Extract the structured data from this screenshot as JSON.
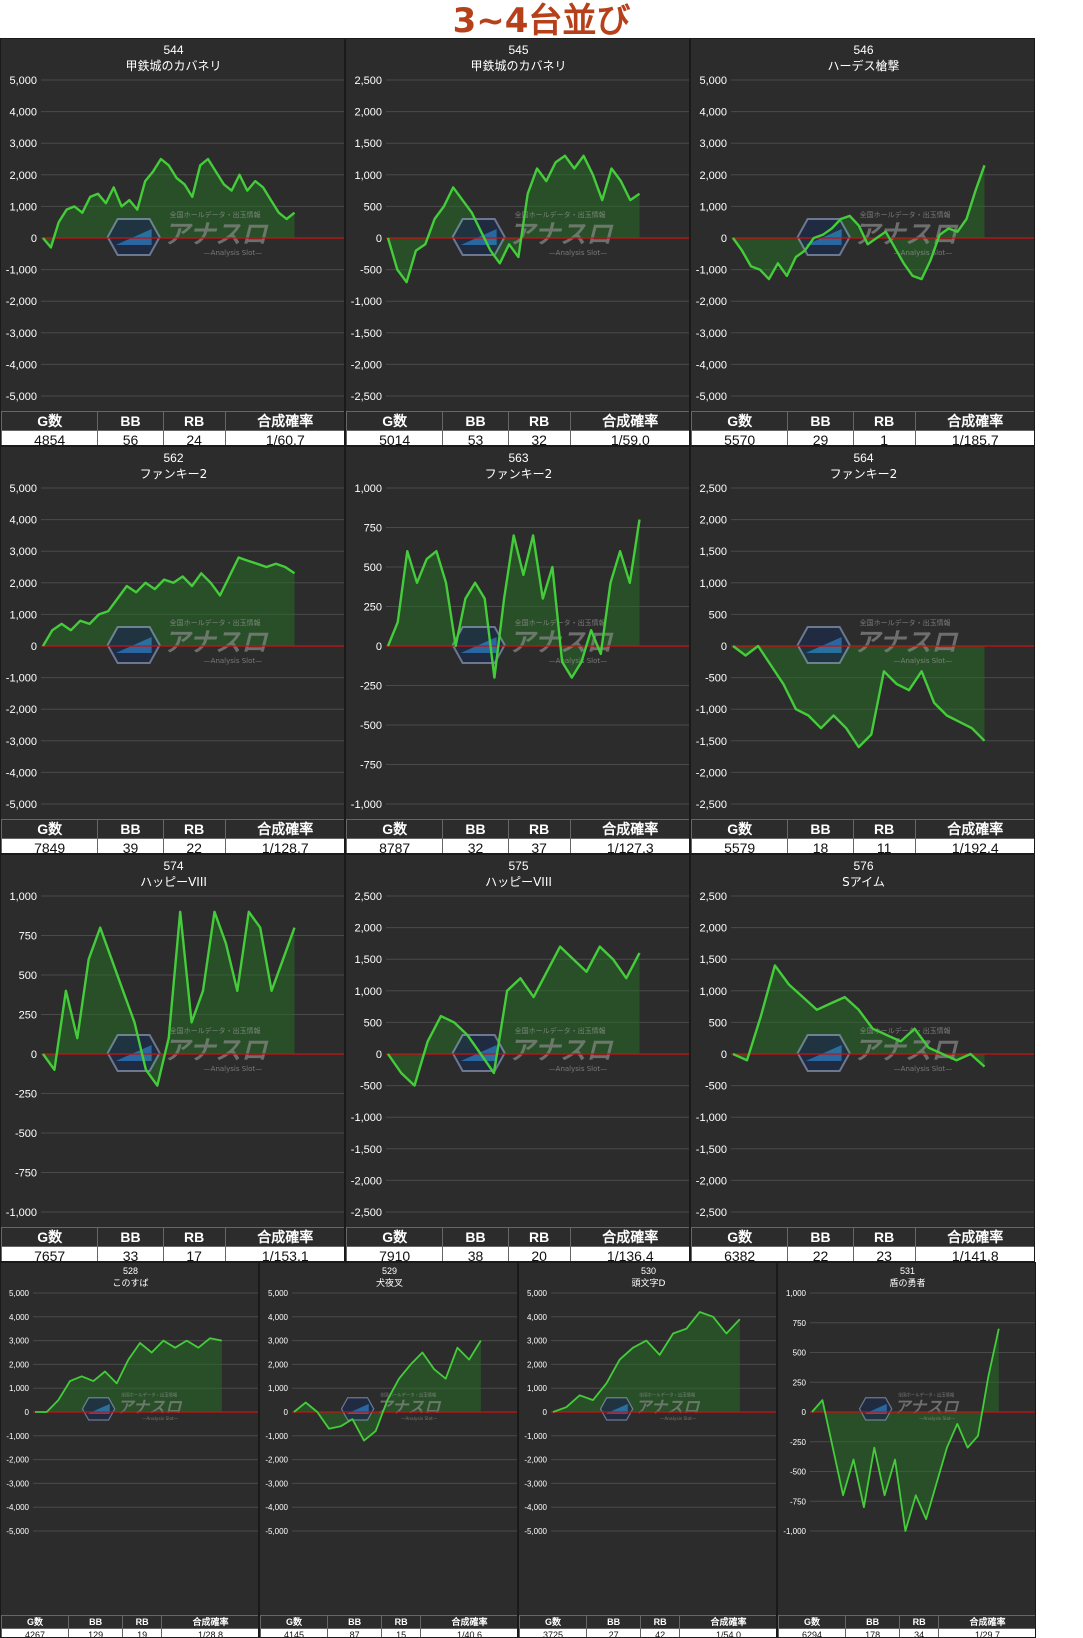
{
  "page_title": "3~4台並び",
  "headers": {
    "games": "G数",
    "bb": "BB",
    "rb": "RB",
    "rate": "合成確率"
  },
  "watermark": {
    "main": "アナスロ",
    "sub": "—Analysis Slot—",
    "top": "全国ホールデータ・出玉情報"
  },
  "colors": {
    "panel_bg": "#2c2c2c",
    "grid": "#4a4a4a",
    "line": "#44cc3a",
    "fill": "rgba(40,110,40,0.55)",
    "zero_line": "#cc1111",
    "title": "#b5401a"
  },
  "chart_data": [
    {
      "type": "area",
      "title": "544",
      "subtitle": "甲鉄城のカバネリ",
      "ylim": [
        -5000,
        5000
      ],
      "yticks": [
        "5,000",
        "4,000",
        "3,000",
        "2,000",
        "1,000",
        "0",
        "-1,000",
        "-2,000",
        "-3,000",
        "-4,000",
        "-5,000"
      ],
      "values": [
        0,
        -300,
        500,
        900,
        1000,
        800,
        1300,
        1400,
        1100,
        1600,
        1000,
        1200,
        900,
        1800,
        2100,
        2500,
        2300,
        1900,
        1700,
        1300,
        2300,
        2500,
        2100,
        1700,
        1500,
        2000,
        1500,
        1800,
        1600,
        1200,
        800,
        600,
        800
      ],
      "stats": {
        "games": "4854",
        "bb": "56",
        "rb": "24",
        "rate": "1/60.7"
      }
    },
    {
      "type": "area",
      "title": "545",
      "subtitle": "甲鉄城のカバネリ",
      "ylim": [
        -2500,
        2500
      ],
      "yticks": [
        "2,500",
        "2,000",
        "1,500",
        "1,000",
        "500",
        "0",
        "-500",
        "-1,000",
        "-1,500",
        "-2,000",
        "-2,500"
      ],
      "values": [
        0,
        -500,
        -700,
        -200,
        -100,
        300,
        500,
        800,
        600,
        400,
        100,
        -200,
        -400,
        -100,
        -300,
        700,
        1100,
        900,
        1200,
        1300,
        1100,
        1300,
        1000,
        600,
        1100,
        900,
        600,
        700
      ],
      "stats": {
        "games": "5014",
        "bb": "53",
        "rb": "32",
        "rate": "1/59.0"
      }
    },
    {
      "type": "area",
      "title": "546",
      "subtitle": "ハーデス槍撃",
      "ylim": [
        -5000,
        5000
      ],
      "yticks": [
        "5,000",
        "4,000",
        "3,000",
        "2,000",
        "1,000",
        "0",
        "-1,000",
        "-2,000",
        "-3,000",
        "-4,000",
        "-5,000"
      ],
      "values": [
        0,
        -400,
        -900,
        -1000,
        -1300,
        -800,
        -1200,
        -600,
        -400,
        0,
        100,
        300,
        600,
        700,
        400,
        -200,
        0,
        200,
        -300,
        -800,
        -1200,
        -1300,
        -700,
        100,
        300,
        200,
        600,
        1500,
        2300
      ],
      "stats": {
        "games": "5570",
        "bb": "29",
        "rb": "1",
        "rate": "1/185.7"
      }
    },
    {
      "type": "area",
      "title": "562",
      "subtitle": "ファンキー2",
      "ylim": [
        -5000,
        5000
      ],
      "yticks": [
        "5,000",
        "4,000",
        "3,000",
        "2,000",
        "1,000",
        "0",
        "-1,000",
        "-2,000",
        "-3,000",
        "-4,000",
        "-5,000"
      ],
      "values": [
        0,
        500,
        700,
        500,
        800,
        700,
        1000,
        1100,
        1500,
        1900,
        1700,
        2000,
        1800,
        2100,
        2000,
        2200,
        1900,
        2300,
        2000,
        1600,
        2200,
        2800,
        2700,
        2600,
        2500,
        2600,
        2500,
        2300
      ],
      "stats": {
        "games": "7849",
        "bb": "39",
        "rb": "22",
        "rate": "1/128.7"
      }
    },
    {
      "type": "area",
      "title": "563",
      "subtitle": "ファンキー2",
      "ylim": [
        -1000,
        1000
      ],
      "yticks": [
        "1,000",
        "750",
        "500",
        "250",
        "0",
        "-250",
        "-500",
        "-750",
        "-1,000"
      ],
      "values": [
        0,
        150,
        600,
        400,
        550,
        600,
        400,
        0,
        300,
        400,
        300,
        -200,
        300,
        700,
        450,
        700,
        300,
        500,
        -100,
        -200,
        -100,
        100,
        -50,
        400,
        600,
        400,
        800
      ],
      "stats": {
        "games": "8787",
        "bb": "32",
        "rb": "37",
        "rate": "1/127.3"
      }
    },
    {
      "type": "area",
      "title": "564",
      "subtitle": "ファンキー2",
      "ylim": [
        -2500,
        2500
      ],
      "yticks": [
        "2,500",
        "2,000",
        "1,500",
        "1,000",
        "500",
        "0",
        "-500",
        "-1,000",
        "-1,500",
        "-2,000",
        "-2,500"
      ],
      "values": [
        0,
        -150,
        0,
        -300,
        -600,
        -1000,
        -1100,
        -1300,
        -1100,
        -1300,
        -1600,
        -1400,
        -400,
        -600,
        -700,
        -400,
        -900,
        -1100,
        -1200,
        -1300,
        -1500
      ],
      "stats": {
        "games": "5579",
        "bb": "18",
        "rb": "11",
        "rate": "1/192.4"
      }
    },
    {
      "type": "area",
      "title": "574",
      "subtitle": "ハッピーVIII",
      "ylim": [
        -1000,
        1000
      ],
      "yticks": [
        "1,000",
        "750",
        "500",
        "250",
        "0",
        "-250",
        "-500",
        "-750",
        "-1,000"
      ],
      "values": [
        0,
        -100,
        400,
        100,
        600,
        800,
        600,
        400,
        200,
        -100,
        -200,
        100,
        900,
        200,
        400,
        900,
        700,
        400,
        900,
        800,
        400,
        600,
        800
      ],
      "stats": {
        "games": "7657",
        "bb": "33",
        "rb": "17",
        "rate": "1/153.1"
      }
    },
    {
      "type": "area",
      "title": "575",
      "subtitle": "ハッピーVIII",
      "ylim": [
        -2500,
        2500
      ],
      "yticks": [
        "2,500",
        "2,000",
        "1,500",
        "1,000",
        "500",
        "0",
        "-500",
        "-1,000",
        "-1,500",
        "-2,000",
        "-2,500"
      ],
      "values": [
        0,
        -300,
        -500,
        200,
        600,
        500,
        300,
        0,
        -300,
        1000,
        1200,
        900,
        1300,
        1700,
        1500,
        1300,
        1700,
        1500,
        1200,
        1600
      ],
      "stats": {
        "games": "7910",
        "bb": "38",
        "rb": "20",
        "rate": "1/136.4"
      }
    },
    {
      "type": "area",
      "title": "576",
      "subtitle": "Sアイム",
      "ylim": [
        -2500,
        2500
      ],
      "yticks": [
        "2,500",
        "2,000",
        "1,500",
        "1,000",
        "500",
        "0",
        "-500",
        "-1,000",
        "-1,500",
        "-2,000",
        "-2,500"
      ],
      "values": [
        0,
        -100,
        600,
        1400,
        1100,
        900,
        700,
        800,
        900,
        700,
        400,
        300,
        200,
        400,
        100,
        0,
        -100,
        0,
        -200
      ],
      "stats": {
        "games": "6382",
        "bb": "22",
        "rb": "23",
        "rate": "1/141.8"
      }
    },
    {
      "type": "area",
      "title": "528",
      "subtitle": "このすば",
      "ylim": [
        -5000,
        5000
      ],
      "yticks": [
        "5,000",
        "4,000",
        "3,000",
        "2,000",
        "1,000",
        "0",
        "-1,000",
        "-2,000",
        "-3,000",
        "-4,000",
        "-5,000"
      ],
      "values": [
        0,
        0,
        500,
        1300,
        1500,
        1300,
        1700,
        1200,
        2200,
        2900,
        2500,
        3000,
        2700,
        3000,
        2700,
        3100,
        3000
      ],
      "stats": {
        "games": "4267",
        "bb": "129",
        "rb": "19",
        "rate": "1/28.8"
      }
    },
    {
      "type": "area",
      "title": "529",
      "subtitle": "犬夜叉",
      "ylim": [
        -5000,
        5000
      ],
      "yticks": [
        "5,000",
        "4,000",
        "3,000",
        "2,000",
        "1,000",
        "0",
        "-1,000",
        "-2,000",
        "-3,000",
        "-4,000",
        "-5,000"
      ],
      "values": [
        0,
        400,
        0,
        -700,
        -600,
        -300,
        -1200,
        -800,
        500,
        1400,
        2000,
        2500,
        1800,
        1400,
        2700,
        2200,
        3000
      ],
      "stats": {
        "games": "4145",
        "bb": "87",
        "rb": "15",
        "rate": "1/40.6"
      }
    },
    {
      "type": "area",
      "title": "530",
      "subtitle": "頭文字D",
      "ylim": [
        -5000,
        5000
      ],
      "yticks": [
        "5,000",
        "4,000",
        "3,000",
        "2,000",
        "1,000",
        "0",
        "-1,000",
        "-2,000",
        "-3,000",
        "-4,000",
        "-5,000"
      ],
      "values": [
        0,
        200,
        700,
        500,
        1200,
        2200,
        2700,
        3000,
        2400,
        3300,
        3500,
        4200,
        4000,
        3300,
        3900
      ],
      "stats": {
        "games": "3725",
        "bb": "27",
        "rb": "42",
        "rate": "1/54.0"
      }
    },
    {
      "type": "area",
      "title": "531",
      "subtitle": "盾の勇者",
      "ylim": [
        -1000,
        1000
      ],
      "yticks": [
        "1,000",
        "750",
        "500",
        "250",
        "0",
        "-250",
        "-500",
        "-750",
        "-1,000"
      ],
      "values": [
        0,
        100,
        -300,
        -700,
        -400,
        -800,
        -300,
        -700,
        -400,
        -1000,
        -700,
        -900,
        -600,
        -300,
        -100,
        -300,
        -200,
        300,
        700
      ],
      "stats": {
        "games": "6294",
        "bb": "178",
        "rb": "34",
        "rate": "1/29.7"
      }
    }
  ]
}
